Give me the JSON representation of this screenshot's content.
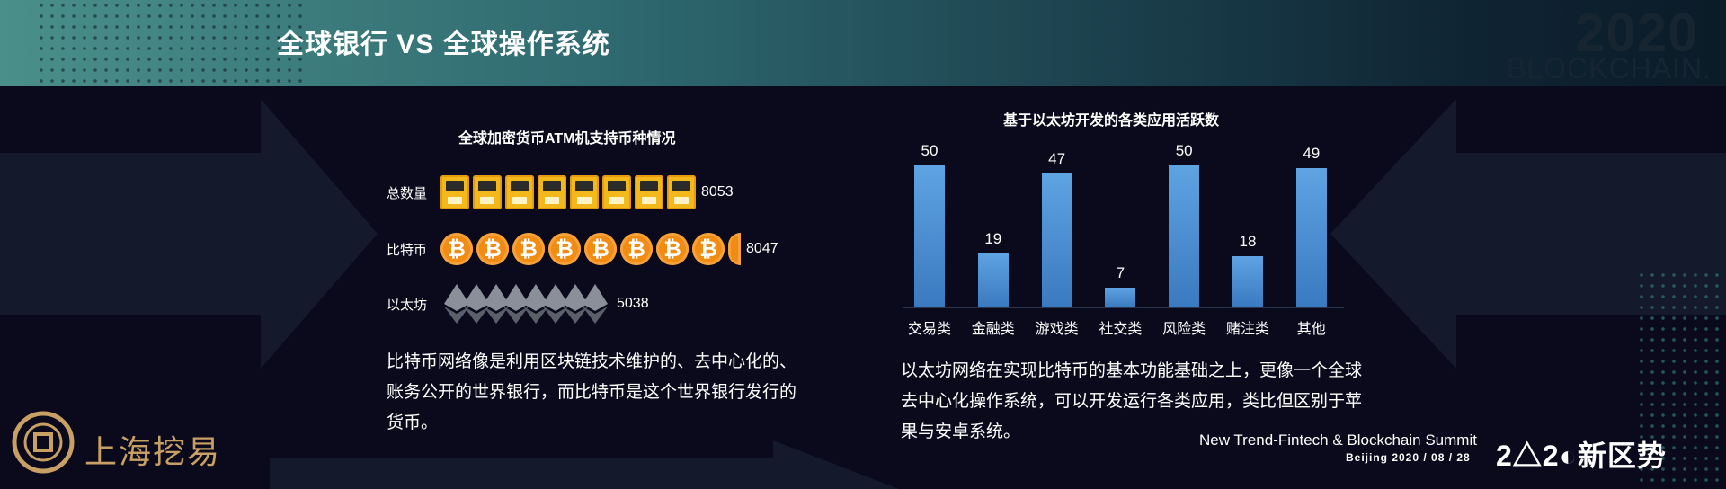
{
  "header": {
    "title": "全球银行 VS 全球操作系统",
    "brand_year": "2020",
    "brand_word": "BLOCKCHAIN."
  },
  "left_panel": {
    "chart_title": "全球加密货币ATM机支持币种情况",
    "rows": [
      {
        "label": "总数量",
        "value": "8053",
        "icon": "atm-icon"
      },
      {
        "label": "比特币",
        "value": "8047",
        "icon": "bitcoin-icon"
      },
      {
        "label": "以太坊",
        "value": "5038",
        "icon": "ethereum-icon"
      }
    ],
    "description": "比特币网络像是利用区块链技术维护的、去中心化的、账务公开的世界银行，而比特币是这个世界银行发行的货币。"
  },
  "right_panel": {
    "description": "以太坊网络在实现比特币的基本功能基础之上，更像一个全球去中心化操作系统，可以开发运行各类应用，类比但区别于苹果与安卓系统。"
  },
  "chart_data": [
    {
      "type": "bar",
      "title": "全球加密货币ATM机支持币种情况",
      "categories": [
        "总数量",
        "比特币",
        "以太坊"
      ],
      "values": [
        8053,
        8047,
        5038
      ],
      "xlabel": "",
      "ylabel": ""
    },
    {
      "type": "bar",
      "title": "基于以太坊开发的各类应用活跃数",
      "categories": [
        "交易类",
        "金融类",
        "游戏类",
        "社交类",
        "风险类",
        "赌注类",
        "其他"
      ],
      "values": [
        50,
        19,
        47,
        7,
        50,
        18,
        49
      ],
      "ylim": [
        0,
        50
      ],
      "xlabel": "",
      "ylabel": "",
      "color": "#4a90d9"
    }
  ],
  "logo": {
    "text": "上海挖易"
  },
  "footer": {
    "line1": "New Trend-Fintech & Blockchain Summit",
    "line2": "Beijing  2020 / 08 / 28",
    "brand": "2△2◐新区势"
  },
  "colors": {
    "bar": "#4a90d9",
    "btc": "#f28b12",
    "atm": "#f3b81b",
    "gold": "#c9a063"
  }
}
